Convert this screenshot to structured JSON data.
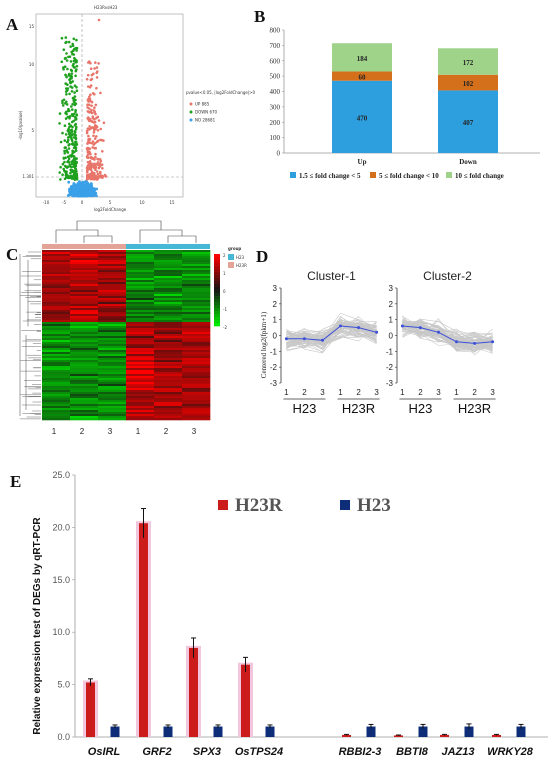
{
  "panels": {
    "A": "A",
    "B": "B",
    "C": "C",
    "D": "D",
    "E": "E"
  },
  "panel_a": {
    "title": "H23RvsH23",
    "xlabel": "log2FoldChange",
    "ylabel": "-log10(pvalue)",
    "legend_title": "pvalue<0.05, |log2FoldChange|>0",
    "legend": [
      {
        "label": "UP 885",
        "color": "#e8746a"
      },
      {
        "label": "DOWN 670",
        "color": "#1fa01f"
      },
      {
        "label": "NO 28681",
        "color": "#3aa0e8"
      }
    ],
    "xticks": [
      "-10",
      "-5",
      "0",
      "5",
      "10",
      "15"
    ],
    "yticks": [
      "1.301",
      "5",
      "10",
      "15"
    ]
  },
  "panel_c": {
    "legend_title": "group",
    "groups": [
      {
        "label": "H23",
        "color": "#47b7d6"
      },
      {
        "label": "H23R",
        "color": "#e3a497"
      }
    ],
    "scale_ticks": [
      "2",
      "1",
      "0",
      "-1",
      "-2"
    ],
    "col_labels": [
      "1",
      "2",
      "3",
      "1",
      "2",
      "3"
    ]
  },
  "panel_d": {
    "ylabel": "Centered log2(fpkm+1)",
    "clusters": [
      {
        "title": "Cluster-1",
        "profile": [
          -0.2,
          -0.2,
          -0.3,
          0.6,
          0.5,
          0.2
        ]
      },
      {
        "title": "Cluster-2",
        "profile": [
          0.6,
          0.5,
          0.2,
          -0.4,
          -0.5,
          -0.4
        ]
      }
    ],
    "yticks": [
      "3",
      "2",
      "1",
      "0",
      "-1",
      "-2",
      "-3"
    ],
    "xticks": [
      "1",
      "2",
      "3",
      "1",
      "2",
      "3"
    ],
    "groups": [
      "H23",
      "H23R"
    ]
  },
  "chart_data": [
    {
      "type": "bar",
      "panel": "B",
      "categories": [
        "Up",
        "Down"
      ],
      "series": [
        {
          "name": "1.5 ≤ fold change < 5",
          "color": "#2e9fde",
          "values": [
            470,
            407
          ]
        },
        {
          "name": "5 ≤ fold change < 10",
          "color": "#d4701c",
          "values": [
            60,
            102
          ]
        },
        {
          "name": "10 ≤ fold change",
          "color": "#9fd38a",
          "values": [
            184,
            172
          ]
        }
      ],
      "stacked": true,
      "ylim": [
        0,
        800
      ],
      "yticks": [
        "0",
        "100",
        "200",
        "300",
        "400",
        "500",
        "600",
        "700",
        "800"
      ]
    },
    {
      "type": "bar",
      "panel": "E",
      "ylabel": "Relative expression test of DEGs by qRT-PCR",
      "categories": [
        "OsIRL",
        "GRF2",
        "SPX3",
        "OsTPS24",
        "RBBI2-3",
        "BBTI8",
        "JAZ13",
        "WRKY28"
      ],
      "series": [
        {
          "name": "H23R",
          "color": "#cc1b1b",
          "values": [
            5.2,
            20.4,
            8.5,
            6.9,
            0.2,
            0.15,
            0.2,
            0.2
          ],
          "errors": [
            0.35,
            1.4,
            0.95,
            0.7,
            0.05,
            0.04,
            0.05,
            0.05
          ]
        },
        {
          "name": "H23",
          "color": "#0d2d78",
          "values": [
            1.0,
            1.0,
            1.0,
            1.0,
            1.0,
            1.0,
            1.0,
            1.0
          ],
          "errors": [
            0.15,
            0.15,
            0.15,
            0.15,
            0.2,
            0.2,
            0.25,
            0.2
          ]
        }
      ],
      "ylim": [
        0,
        25
      ],
      "yticks": [
        "0.0",
        "5.0",
        "10.0",
        "15.0",
        "20.0",
        "25.0"
      ],
      "grid": false,
      "legend": "top"
    }
  ]
}
